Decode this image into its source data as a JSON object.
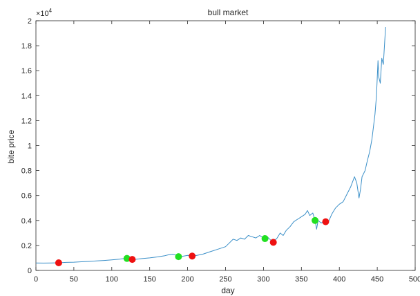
{
  "chart_data": {
    "type": "line",
    "title": "bull market",
    "xlabel": "day",
    "ylabel": "bite price",
    "y_exponent_label": "×10",
    "y_exponent_power": "4",
    "xlim": [
      0,
      500
    ],
    "ylim": [
      0,
      20000
    ],
    "x_ticks": [
      0,
      50,
      100,
      150,
      200,
      250,
      300,
      350,
      400,
      450,
      500
    ],
    "y_ticks": [
      0,
      2000,
      4000,
      6000,
      8000,
      10000,
      12000,
      14000,
      16000,
      18000,
      20000
    ],
    "x_tick_labels": [
      "0",
      "50",
      "100",
      "150",
      "200",
      "250",
      "300",
      "350",
      "400",
      "450",
      "500"
    ],
    "y_tick_labels": [
      "0",
      "0.2",
      "0.4",
      "0.6",
      "0.8",
      "1",
      "1.2",
      "1.4",
      "1.6",
      "1.8",
      "2"
    ],
    "grid": false,
    "series": [
      {
        "color": "#3a8fc8",
        "points": [
          [
            0,
            600
          ],
          [
            10,
            590
          ],
          [
            20,
            600
          ],
          [
            30,
            610
          ],
          [
            40,
            640
          ],
          [
            50,
            660
          ],
          [
            60,
            690
          ],
          [
            70,
            720
          ],
          [
            80,
            760
          ],
          [
            90,
            800
          ],
          [
            100,
            850
          ],
          [
            110,
            900
          ],
          [
            115,
            940
          ],
          [
            120,
            960
          ],
          [
            125,
            920
          ],
          [
            130,
            880
          ],
          [
            140,
            950
          ],
          [
            150,
            1000
          ],
          [
            160,
            1080
          ],
          [
            170,
            1180
          ],
          [
            175,
            1250
          ],
          [
            180,
            1300
          ],
          [
            185,
            1220
          ],
          [
            190,
            1100
          ],
          [
            195,
            1150
          ],
          [
            200,
            1200
          ],
          [
            205,
            1150
          ],
          [
            210,
            1180
          ],
          [
            220,
            1300
          ],
          [
            230,
            1500
          ],
          [
            240,
            1700
          ],
          [
            250,
            1900
          ],
          [
            255,
            2200
          ],
          [
            260,
            2500
          ],
          [
            265,
            2400
          ],
          [
            270,
            2600
          ],
          [
            275,
            2500
          ],
          [
            280,
            2800
          ],
          [
            285,
            2700
          ],
          [
            290,
            2600
          ],
          [
            295,
            2800
          ],
          [
            300,
            2600
          ],
          [
            305,
            2700
          ],
          [
            310,
            2400
          ],
          [
            313,
            2300
          ],
          [
            318,
            2600
          ],
          [
            322,
            3000
          ],
          [
            326,
            2800
          ],
          [
            330,
            3200
          ],
          [
            335,
            3500
          ],
          [
            340,
            3900
          ],
          [
            345,
            4100
          ],
          [
            350,
            4300
          ],
          [
            355,
            4500
          ],
          [
            358,
            4800
          ],
          [
            361,
            4400
          ],
          [
            365,
            4600
          ],
          [
            368,
            4000
          ],
          [
            370,
            3300
          ],
          [
            372,
            4000
          ],
          [
            376,
            3800
          ],
          [
            380,
            3900
          ],
          [
            385,
            3800
          ],
          [
            390,
            4500
          ],
          [
            395,
            5000
          ],
          [
            400,
            5300
          ],
          [
            405,
            5500
          ],
          [
            410,
            6100
          ],
          [
            415,
            6700
          ],
          [
            420,
            7500
          ],
          [
            423,
            7000
          ],
          [
            426,
            5800
          ],
          [
            428,
            6500
          ],
          [
            430,
            7500
          ],
          [
            434,
            8000
          ],
          [
            437,
            8800
          ],
          [
            440,
            9500
          ],
          [
            443,
            10500
          ],
          [
            445,
            11500
          ],
          [
            447,
            12500
          ],
          [
            449,
            14000
          ],
          [
            451,
            16800
          ],
          [
            452,
            15500
          ],
          [
            454,
            15000
          ],
          [
            456,
            17000
          ],
          [
            458,
            16500
          ],
          [
            459,
            17500
          ],
          [
            461,
            19500
          ]
        ]
      }
    ],
    "markers": {
      "green": {
        "color": "#22e022",
        "points": [
          [
            120,
            960
          ],
          [
            188,
            1100
          ],
          [
            302,
            2550
          ],
          [
            368,
            4000
          ]
        ]
      },
      "red": {
        "color": "#ee1111",
        "points": [
          [
            30,
            610
          ],
          [
            127,
            880
          ],
          [
            206,
            1150
          ],
          [
            313,
            2250
          ],
          [
            382,
            3900
          ]
        ]
      }
    }
  }
}
